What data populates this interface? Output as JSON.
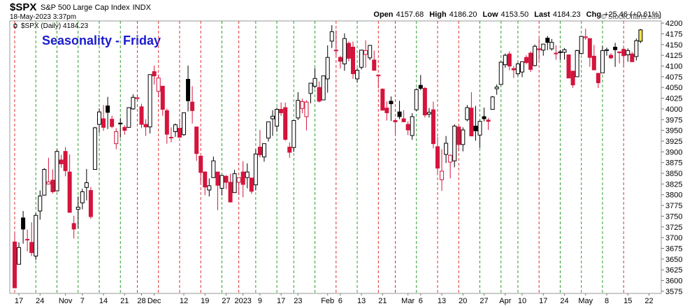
{
  "chart_data": {
    "type": "candlestick",
    "title": "Seasonality - Friday",
    "header": {
      "symbol": "$SPX",
      "description": "S&P 500 Large Cap Index",
      "exchange": "INDX",
      "timestamp": "18-May-2023 3:37pm",
      "quote": [
        {
          "label": "Open",
          "value": "4157.68"
        },
        {
          "label": "High",
          "value": "4186.20"
        },
        {
          "label": "Low",
          "value": "4153.50"
        },
        {
          "label": "Last",
          "value": "4184.23"
        },
        {
          "label": "Chg",
          "value": "+25.46 (+0.61%)"
        }
      ]
    },
    "legend_label": "$SPX (Daily) 4184.23",
    "watermark": "© StockCharts.com",
    "categories": [
      null,
      "17",
      null,
      null,
      null,
      null,
      "24",
      null,
      null,
      null,
      null,
      null,
      "Nov",
      null,
      null,
      null,
      "7",
      null,
      null,
      null,
      null,
      "14",
      null,
      null,
      null,
      null,
      "21",
      null,
      null,
      null,
      "28",
      null,
      null,
      "Dec",
      null,
      null,
      null,
      null,
      null,
      null,
      "12",
      null,
      null,
      null,
      null,
      "19",
      null,
      null,
      null,
      null,
      "27",
      null,
      null,
      null,
      "2023",
      null,
      null,
      null,
      "9",
      null,
      null,
      null,
      null,
      "17",
      null,
      null,
      null,
      "23",
      null,
      null,
      null,
      null,
      null,
      null,
      "Feb",
      null,
      null,
      "6",
      null,
      null,
      null,
      null,
      "13",
      null,
      null,
      null,
      null,
      "21",
      null,
      null,
      null,
      null,
      null,
      "Mar",
      null,
      null,
      "6",
      null,
      null,
      null,
      null,
      "13",
      null,
      null,
      null,
      null,
      "20",
      null,
      null,
      null,
      null,
      "27",
      null,
      null,
      null,
      null,
      "Apr",
      null,
      null,
      null,
      "10",
      null,
      null,
      null,
      null,
      "17",
      null,
      null,
      null,
      null,
      "24",
      null,
      null,
      null,
      null,
      "May",
      null,
      null,
      null,
      null,
      "8",
      null,
      null,
      null,
      null,
      "15",
      null,
      null,
      null,
      null,
      "22"
    ],
    "open": [
      3690,
      3638,
      3746,
      3696,
      3689,
      3657,
      3762,
      3799,
      3825,
      3834,
      3809,
      3881,
      3901,
      3853,
      3733,
      3766,
      3781,
      3817,
      3810,
      3859,
      3964,
      3977,
      4007,
      3976,
      3919,
      3967,
      3957,
      3957,
      4000,
      4024,
      4005,
      3964,
      3958,
      4087,
      4041,
      4053,
      3996,
      3934,
      3947,
      3955,
      3940,
      4069,
      4016,
      3958,
      3890,
      3853,
      3811,
      3840,
      3853,
      3815,
      3843,
      3829,
      3805,
      3829,
      3853,
      3840,
      3839,
      3823,
      3911,
      3888,
      3932,
      3977,
      3960,
      3999,
      4003,
      3911,
      3910,
      3979,
      4001,
      3982,
      4036,
      4053,
      4050,
      4021,
      4070,
      4158,
      4137,
      4120,
      4105,
      4153,
      4144,
      4070,
      4097,
      4127,
      4119,
      4114,
      4077,
      4046,
      4002,
      4018,
      3973,
      3993,
      3977,
      3964,
      3938,
      3998,
      4055,
      4048,
      3988,
      3998,
      3912,
      3835,
      3894,
      3876,
      3879,
      3958,
      3917,
      3975,
      4002,
      3960,
      3939,
      3982,
      3974,
      3999,
      4047,
      4057,
      4103,
      4128,
      4094,
      4082,
      4086,
      4120,
      4130,
      4101,
      4140,
      4137,
      4165,
      4140,
      4130,
      4132,
      4132,
      4126,
      4088,
      4075,
      4129,
      4166,
      4164,
      4123,
      4083,
      4084,
      4136,
      4125,
      4144,
      4133,
      4139,
      4126,
      4128,
      4122,
      4157.68,
      null,
      null
    ],
    "high": [
      3712,
      3689,
      3762,
      3719,
      3736,
      3757,
      3810,
      3862,
      3886,
      3859,
      3905,
      3893,
      3911,
      3894,
      3751,
      3796,
      3814,
      3860,
      3818,
      3958,
      4001,
      4009,
      4028,
      3984,
      3955,
      3979,
      3962,
      4004,
      4034,
      4034,
      4012,
      3976,
      4080,
      4101,
      4080,
      4053,
      4001,
      3957,
      3966,
      3977,
      3991,
      4101,
      4053,
      3959,
      3890,
      3855,
      3838,
      3889,
      3853,
      3846,
      3846,
      3849,
      3858,
      3840,
      3878,
      3873,
      3839,
      3906,
      3951,
      3919,
      3970,
      3997,
      4003,
      4015,
      4015,
      3922,
      3973,
      4039,
      4024,
      4020,
      4061,
      4095,
      4064,
      4077,
      4148,
      4195,
      4183,
      4124,
      4176,
      4157,
      4157,
      4095,
      4138,
      4160,
      4149,
      4136,
      4081,
      4048,
      4018,
      4029,
      3978,
      4019,
      3997,
      3971,
      3990,
      4048,
      4079,
      4051,
      4002,
      4017,
      3935,
      3906,
      3937,
      3894,
      3964,
      3958,
      3957,
      4009,
      4039,
      4007,
      3973,
      4003,
      3979,
      4030,
      4057,
      4110,
      4129,
      4134,
      4100,
      4108,
      4110,
      4125,
      4134,
      4150,
      4164,
      4152,
      4170,
      4163,
      4148,
      4138,
      4142,
      4127,
      4089,
      4138,
      4170,
      4187,
      4165,
      4149,
      4083,
      4147,
      4143,
      4130,
      4154,
      4133,
      4143,
      4141,
      4133,
      4164,
      4186.2,
      null,
      null
    ],
    "low": [
      3583,
      3638,
      3686,
      3668,
      3657,
      3648,
      3742,
      3799,
      3824,
      3803,
      3808,
      3863,
      3843,
      3758,
      3698,
      3722,
      3766,
      3787,
      3744,
      3859,
      3944,
      3949,
      3953,
      3955,
      3906,
      3933,
      3940,
      3956,
      3998,
      4020,
      3955,
      3937,
      3943,
      4057,
      4027,
      3984,
      3919,
      3922,
      3935,
      3933,
      3937,
      3994,
      3966,
      3879,
      3827,
      3799,
      3796,
      3839,
      3764,
      3798,
      3813,
      3783,
      3805,
      3800,
      3794,
      3815,
      3802,
      3810,
      3887,
      3877,
      3924,
      3937,
      3947,
      3984,
      3926,
      3886,
      3900,
      3974,
      3990,
      3950,
      4013,
      4048,
      4015,
      4021,
      4038,
      4142,
      4123,
      4094,
      4089,
      4111,
      4070,
      4061,
      4092,
      4096,
      4114,
      4089,
      4048,
      3997,
      3973,
      3972,
      3943,
      3976,
      3969,
      3939,
      3928,
      3995,
      4044,
      3980,
      3980,
      3908,
      3847,
      3809,
      3874,
      3838,
      3864,
      3901,
      3901,
      3971,
      3937,
      3926,
      3909,
      3971,
      3951,
      3999,
      4033,
      4056,
      4096,
      4090,
      4072,
      4077,
      4074,
      4104,
      4086,
      4099,
      4114,
      4124,
      4137,
      4136,
      4115,
      4114,
      4115,
      4072,
      4049,
      4075,
      4127,
      4161,
      4098,
      4091,
      4049,
      4084,
      4124,
      4116,
      4098,
      4106,
      4099,
      4110,
      4110,
      4113,
      4153.5,
      null,
      null
    ],
    "close": [
      3583,
      3677,
      3720,
      3695,
      3665,
      3752,
      3797,
      3859,
      3830,
      3807,
      3901,
      3872,
      3856,
      3759,
      3720,
      3771,
      3807,
      3828,
      3749,
      3956,
      3993,
      3957,
      3992,
      3959,
      3947,
      3965,
      3950,
      4003,
      4027,
      4026,
      3964,
      3958,
      4080,
      4077,
      4072,
      3999,
      3941,
      3934,
      3963,
      3934,
      3991,
      4019,
      3996,
      3896,
      3852,
      3818,
      3821,
      3879,
      3822,
      3845,
      3829,
      3783,
      3849,
      3840,
      3824,
      3853,
      3808,
      3895,
      3893,
      3919,
      3970,
      3983,
      3999,
      3991,
      3929,
      3899,
      3973,
      4020,
      4017,
      4016,
      4060,
      4071,
      4018,
      4077,
      4120,
      4180,
      4136,
      4111,
      4164,
      4118,
      4082,
      4090,
      4137,
      4136,
      4148,
      4090,
      4079,
      3997,
      3991,
      4012,
      3970,
      3982,
      3970,
      3951,
      3982,
      4045,
      4048,
      3986,
      3992,
      3919,
      3862,
      3855,
      3920,
      3892,
      3960,
      3917,
      3951,
      4003,
      3937,
      3949,
      3971,
      3977,
      3971,
      4028,
      4051,
      4109,
      4125,
      4100,
      4091,
      4105,
      4110,
      4108,
      4092,
      4146,
      4138,
      4151,
      4155,
      4155,
      4130,
      4133,
      4138,
      4072,
      4056,
      4136,
      4169,
      4168,
      4120,
      4091,
      4061,
      4136,
      4138,
      4119,
      4138,
      4131,
      4124,
      4136,
      4110,
      4159,
      4184.23,
      null,
      null
    ],
    "ylim": [
      3570,
      4205
    ],
    "yticks": [
      3575,
      3600,
      3625,
      3650,
      3675,
      3700,
      3725,
      3750,
      3775,
      3800,
      3825,
      3850,
      3875,
      3900,
      3925,
      3950,
      3975,
      4000,
      4025,
      4050,
      4075,
      4100,
      4125,
      4150,
      4175,
      4200
    ],
    "up_color": "#000000",
    "down_color": "#d4143c",
    "last_color": "#f3e14b",
    "friday_up_color": "#2e9e2e",
    "friday_down_color": "#e03030",
    "title_color": "#1a1ad0"
  }
}
